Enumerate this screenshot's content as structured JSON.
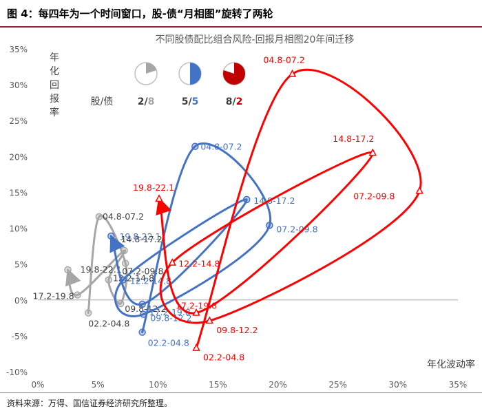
{
  "figure": {
    "header": "图 4：每四年为一个时间窗口，股-债“月相图”旋转了两轮",
    "source": "资料来源：万得、国信证券经济研究所整理。"
  },
  "legend": {
    "title": "股/债",
    "items": [
      {
        "stock": "2",
        "slash": "/",
        "bond": "8",
        "color": "#a6a6a6",
        "fill_fraction": 0.2
      },
      {
        "stock": "5",
        "slash": "/",
        "bond": "5",
        "color": "#4472c4",
        "fill_fraction": 0.5
      },
      {
        "stock": "8",
        "slash": "/",
        "bond": "2",
        "color": "#c00000",
        "fill_fraction": 0.8
      }
    ]
  },
  "chart_data": {
    "type": "line",
    "title": "不同股债配比组合风险-回报月相图20年间迁移",
    "xlabel": "年化波动率",
    "ylabel": "年化回报率",
    "xlim": [
      0,
      0.35
    ],
    "ylim": [
      -0.1,
      0.35
    ],
    "x_ticks": [
      "0%",
      "5%",
      "10%",
      "15%",
      "20%",
      "25%",
      "30%",
      "35%"
    ],
    "y_ticks": [
      "-10%",
      "-5%",
      "0%",
      "5%",
      "10%",
      "15%",
      "20%",
      "25%",
      "30%",
      "35%"
    ],
    "series": [
      {
        "name": "2/8",
        "color": "#a6a6a6",
        "marker": "circle",
        "points": [
          {
            "label": "02.2-04.8",
            "x": 0.042,
            "y": -0.018
          },
          {
            "label": "04.8-07.2",
            "x": 0.051,
            "y": 0.116
          },
          {
            "label": "07.2-09.8",
            "x": 0.073,
            "y": 0.051
          },
          {
            "label": "09.8-12.2",
            "x": 0.069,
            "y": -0.005
          },
          {
            "label": "12.2-14.8",
            "x": 0.059,
            "y": 0.028
          },
          {
            "label": "14.8-17.2",
            "x": 0.072,
            "y": 0.069
          },
          {
            "label": "17.2-19.8",
            "x": 0.033,
            "y": 0.007
          },
          {
            "label": "19.8-22.1",
            "x": 0.025,
            "y": 0.042
          }
        ]
      },
      {
        "name": "5/5",
        "color": "#4472c4",
        "marker": "circle",
        "points": [
          {
            "label": "02.2-04.8",
            "x": 0.087,
            "y": -0.045
          },
          {
            "label": "04.8-07.2",
            "x": 0.131,
            "y": 0.214
          },
          {
            "label": "07.2-09.8",
            "x": 0.193,
            "y": 0.104
          },
          {
            "label": "09.8-12.2",
            "x": 0.088,
            "y": -0.02
          },
          {
            "label": "12.2-14.8",
            "x": 0.071,
            "y": 0.028
          },
          {
            "label": "14.8-17.2",
            "x": 0.174,
            "y": 0.14
          },
          {
            "label": "17.2-19.8",
            "x": 0.087,
            "y": -0.006
          },
          {
            "label": "19.8-22.1",
            "x": 0.061,
            "y": 0.089
          }
        ]
      },
      {
        "name": "8/2",
        "color": "#ff0000",
        "marker": "triangle",
        "points": [
          {
            "label": "02.2-04.8",
            "x": 0.132,
            "y": -0.067
          },
          {
            "label": "04.8-07.2",
            "x": 0.212,
            "y": 0.315
          },
          {
            "label": "07.2-09.8",
            "x": 0.318,
            "y": 0.152
          },
          {
            "label": "09.8-12.2",
            "x": 0.143,
            "y": -0.029
          },
          {
            "label": "12.2-14.8",
            "x": 0.112,
            "y": 0.052
          },
          {
            "label": "14.8-17.2",
            "x": 0.279,
            "y": 0.205
          },
          {
            "label": "17.2-19.8",
            "x": 0.132,
            "y": -0.018
          },
          {
            "label": "19.8-22.1",
            "x": 0.101,
            "y": 0.141
          }
        ]
      }
    ]
  }
}
